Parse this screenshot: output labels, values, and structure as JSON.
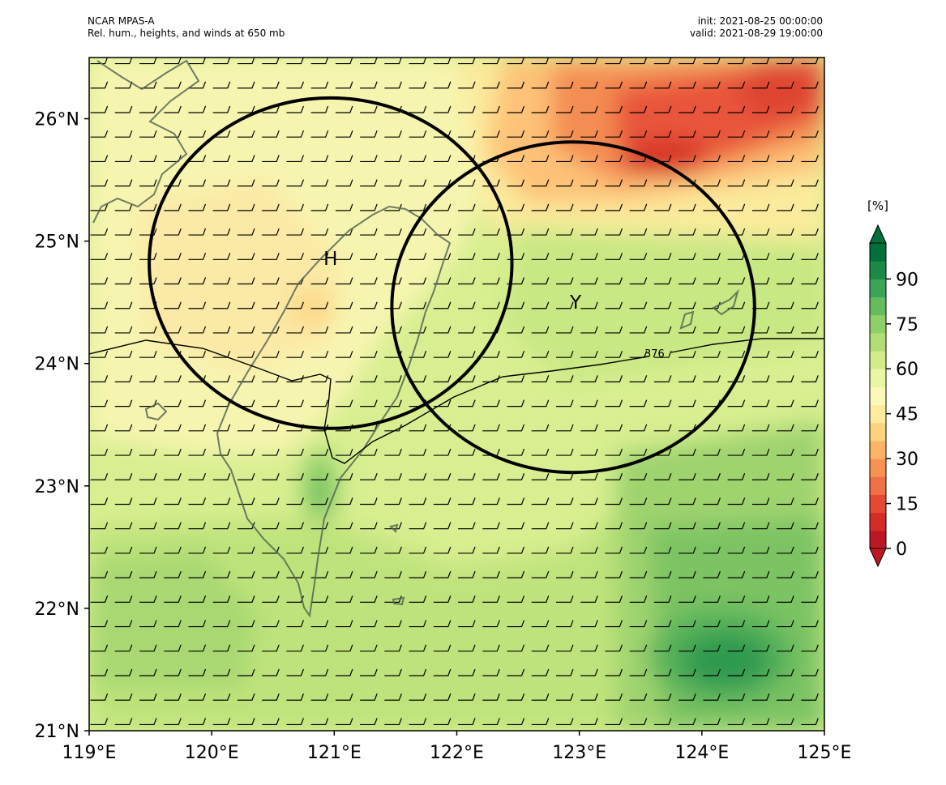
{
  "header": {
    "model": "NCAR MPAS-A",
    "description": "Rel. hum., heights, and winds at 650 mb",
    "init": "init: 2021-08-25 00:00:00",
    "valid": "valid: 2021-08-29 19:00:00"
  },
  "map": {
    "lon_range": [
      119,
      125
    ],
    "lat_range": [
      21,
      26.5
    ],
    "x_ticks": [
      "119°E",
      "120°E",
      "121°E",
      "122°E",
      "123°E",
      "124°E",
      "125°E"
    ],
    "y_ticks": [
      "21°N",
      "22°N",
      "23°N",
      "24°N",
      "25°N",
      "26°N"
    ],
    "markers": [
      {
        "label": "H",
        "lon": 120.97,
        "lat": 24.86
      },
      {
        "label": "Y",
        "lon": 122.97,
        "lat": 24.5
      }
    ],
    "circles": [
      {
        "name": "circle-h",
        "center_lon": 120.97,
        "center_lat": 24.82,
        "radius_lon": 1.48,
        "radius_lat": 1.35
      },
      {
        "name": "circle-y",
        "center_lon": 122.95,
        "center_lat": 24.46,
        "radius_lon": 1.48,
        "radius_lat": 1.35
      }
    ],
    "height_contour_label": "376",
    "wind_barb_spacing_deg": 0.2,
    "wind_direction": "easterly"
  },
  "colorbar": {
    "unit": "[%]",
    "ticks": [
      "0",
      "15",
      "30",
      "45",
      "60",
      "75",
      "90"
    ],
    "colors": [
      "#bd1726",
      "#d42d27",
      "#e34933",
      "#f07047",
      "#f99153",
      "#fdb365",
      "#fed27f",
      "#feeb9d",
      "#fbf9b9",
      "#eaf6a4",
      "#d2ec8a",
      "#b3de75",
      "#8fcf67",
      "#65bc5f",
      "#3aa457",
      "#1b8a47",
      "#00703b"
    ]
  }
}
